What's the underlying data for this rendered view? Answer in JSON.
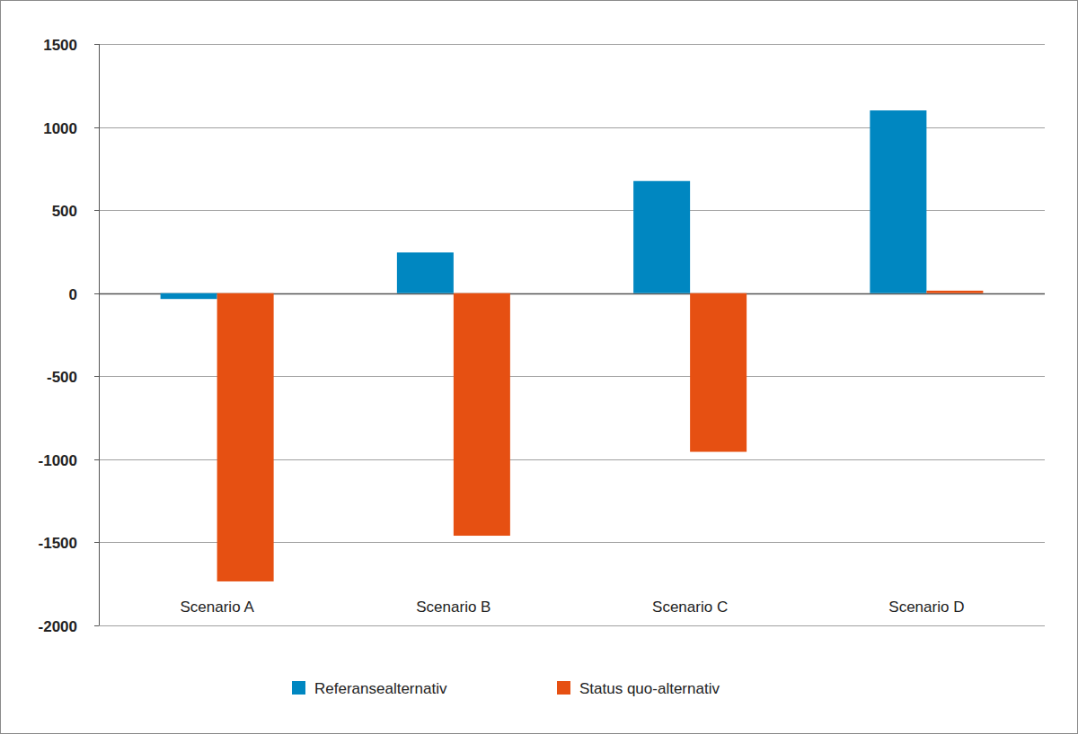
{
  "chart_data": {
    "type": "bar",
    "categories": [
      "Scenario A",
      "Scenario B",
      "Scenario C",
      "Scenario D"
    ],
    "series": [
      {
        "name": "Referansealternativ",
        "color": "#0087c1",
        "values": [
          -35,
          245,
          675,
          1100
        ]
      },
      {
        "name": "Status quo-alternativ",
        "color": "#e65012",
        "values": [
          -1735,
          -1460,
          -955,
          15
        ]
      }
    ],
    "ylim": [
      -2000,
      1500
    ],
    "yticks": [
      -2000,
      -1500,
      -1000,
      -500,
      0,
      500,
      1000,
      1500
    ],
    "grid": true,
    "legend": "bottom"
  }
}
